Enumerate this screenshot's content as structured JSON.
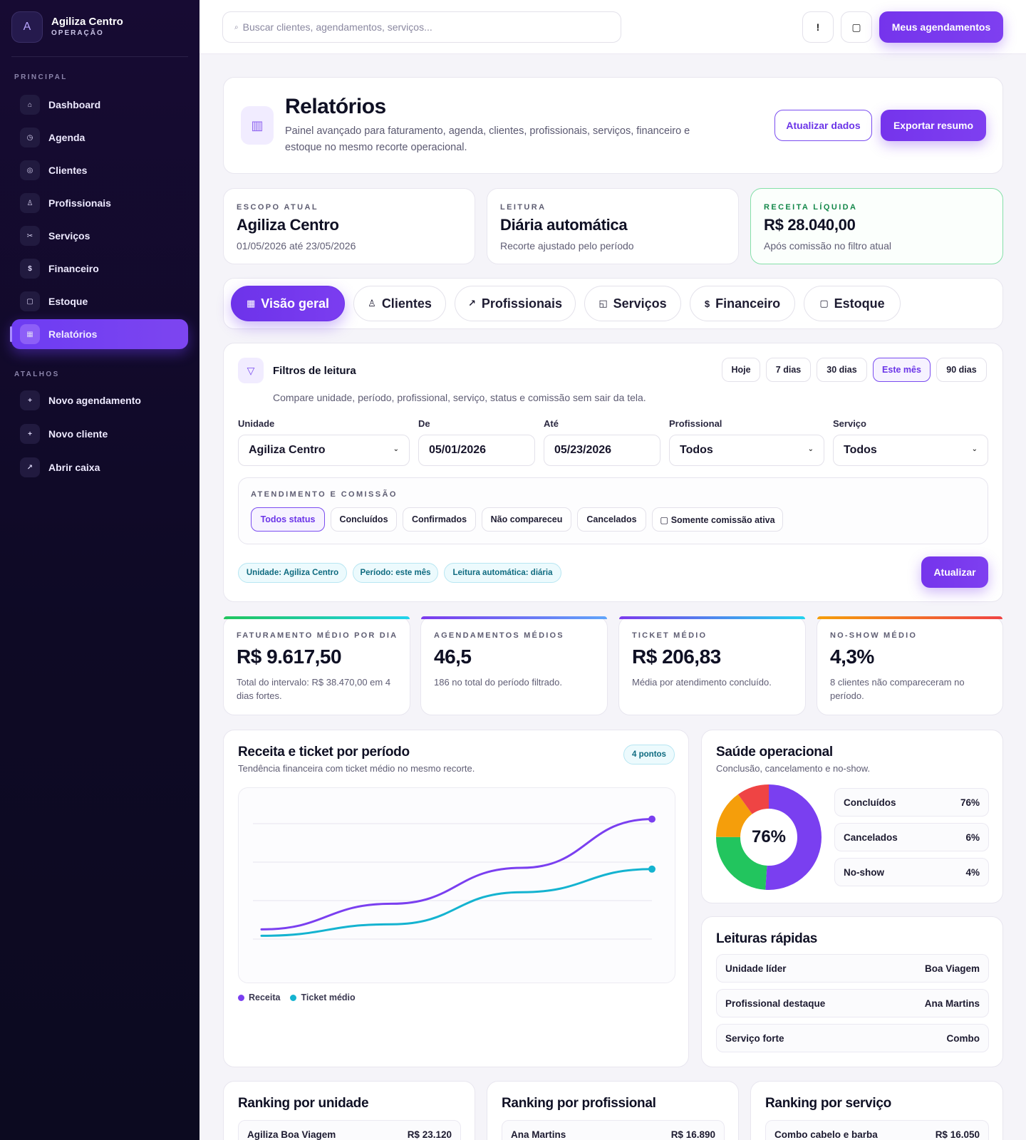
{
  "sidebar": {
    "logo_letter": "A",
    "brand_name": "Agiliza Centro",
    "brand_sub": "OPERAÇÃO",
    "section_main": "PRINCIPAL",
    "section_shortcuts": "ATALHOS",
    "items": [
      {
        "label": "Dashboard",
        "icon": "⌂"
      },
      {
        "label": "Agenda",
        "icon": "◷"
      },
      {
        "label": "Clientes",
        "icon": "◎"
      },
      {
        "label": "Profissionais",
        "icon": "♙"
      },
      {
        "label": "Serviços",
        "icon": "✂"
      },
      {
        "label": "Financeiro",
        "icon": "$"
      },
      {
        "label": "Estoque",
        "icon": "▢"
      },
      {
        "label": "Relatórios",
        "icon": "▦"
      }
    ],
    "shortcuts": [
      {
        "label": "Novo agendamento",
        "icon": "+"
      },
      {
        "label": "Novo cliente",
        "icon": "+"
      },
      {
        "label": "Abrir caixa",
        "icon": "↗"
      }
    ]
  },
  "topbar": {
    "search_icon": "⌕",
    "search_placeholder": "Buscar clientes, agendamentos, serviços...",
    "alert_icon": "!",
    "square_icon": "▢",
    "my_appointments": "Meus agendamentos"
  },
  "hero": {
    "icon": "▥",
    "title": "Relatórios",
    "description": "Painel avançado para faturamento, agenda, clientes, profissionais, serviços, financeiro e estoque no mesmo recorte operacional.",
    "refresh_button": "Atualizar dados",
    "export_button": "Exportar resumo"
  },
  "info_cards": [
    {
      "label": "ESCOPO ATUAL",
      "value": "Agiliza Centro",
      "sub": "01/05/2026 até 23/05/2026"
    },
    {
      "label": "LEITURA",
      "value": "Diária automática",
      "sub": "Recorte ajustado pelo período"
    },
    {
      "label": "RECEITA LÍQUIDA",
      "value": "R$ 28.040,00",
      "sub": "Após comissão no filtro atual"
    }
  ],
  "tabs": [
    {
      "label": "Visão geral",
      "icon": "▦"
    },
    {
      "label": "Clientes",
      "icon": "♙"
    },
    {
      "label": "Profissionais",
      "icon": "↗"
    },
    {
      "label": "Serviços",
      "icon": "◱"
    },
    {
      "label": "Financeiro",
      "icon": "$"
    },
    {
      "label": "Estoque",
      "icon": "▢"
    }
  ],
  "filters": {
    "icon": "▽",
    "title": "Filtros de leitura",
    "description": "Compare unidade, período, profissional, serviço, status e comissão sem sair da tela.",
    "periods": [
      "Hoje",
      "7 dias",
      "30 dias",
      "Este mês",
      "90 dias"
    ],
    "unit_label": "Unidade",
    "unit_value": "Agiliza Centro",
    "from_label": "De",
    "from_value": "05/01/2026",
    "to_label": "Até",
    "to_value": "05/23/2026",
    "pro_label": "Profissional",
    "pro_value": "Todos",
    "service_label": "Serviço",
    "service_value": "Todos",
    "chev": "⌄",
    "status_title": "ATENDIMENTO E COMISSÃO",
    "statuses": [
      "Todos status",
      "Concluídos",
      "Confirmados",
      "Não compareceu",
      "Cancelados",
      "▢ Somente comissão ativa"
    ],
    "tags": [
      "Unidade: Agiliza Centro",
      "Período: este mês",
      "Leitura automática: diária"
    ],
    "update_button": "Atualizar"
  },
  "metrics": [
    {
      "label": "FATURAMENTO MÉDIO POR DIA",
      "value": "R$ 9.617,50",
      "sub": "Total do intervalo: R$ 38.470,00 em 4 dias fortes.",
      "color": "#22c3a0"
    },
    {
      "label": "AGENDAMENTOS MÉDIOS",
      "value": "46,5",
      "sub": "186 no total do período filtrado.",
      "color": "#7c5cf0"
    },
    {
      "label": "TICKET MÉDIO",
      "value": "R$ 206,83",
      "sub": "Média por atendimento concluído.",
      "color": "#6a7cf0"
    },
    {
      "label": "NO-SHOW MÉDIO",
      "value": "4,3%",
      "sub": "8 clientes não compareceram no período.",
      "color": "#f06a4a"
    }
  ],
  "revenue_chart": {
    "title": "Receita e ticket por período",
    "subtitle": "Tendência financeira com ticket médio no mesmo recorte.",
    "badge": "4 pontos",
    "legend": [
      "Receita",
      "Ticket médio"
    ]
  },
  "chart_data": {
    "type": "line",
    "title": "Receita e ticket por período",
    "xlabel": "",
    "ylabel": "",
    "x": [
      1,
      2,
      3,
      4
    ],
    "ylim": [
      0,
      100
    ],
    "grid": true,
    "legend": "bottom-left",
    "series": [
      {
        "name": "Receita",
        "color": "#7a3ff0",
        "values": [
          12,
          32,
          60,
          98
        ]
      },
      {
        "name": "Ticket médio",
        "color": "#14b3d0",
        "values": [
          7,
          16,
          41,
          59
        ]
      }
    ]
  },
  "health": {
    "title": "Saúde operacional",
    "subtitle": "Conclusão, cancelamento e no-show.",
    "center": "76%",
    "rows": [
      {
        "label": "Concluídos",
        "value": "76%"
      },
      {
        "label": "Cancelados",
        "value": "6%"
      },
      {
        "label": "No-show",
        "value": "4%"
      }
    ],
    "donut": [
      {
        "value": 51,
        "color": "#7a3ff0"
      },
      {
        "value": 24,
        "color": "#22c55e"
      },
      {
        "value": 15,
        "color": "#f59e0b"
      },
      {
        "value": 10,
        "color": "#ef4444"
      }
    ]
  },
  "quick": {
    "title": "Leituras rápidas",
    "rows": [
      {
        "label": "Unidade líder",
        "value": "Boa Viagem"
      },
      {
        "label": "Profissional destaque",
        "value": "Ana Martins"
      },
      {
        "label": "Serviço forte",
        "value": "Combo"
      }
    ]
  },
  "rankings": [
    {
      "title": "Ranking por unidade",
      "first_label": "Agiliza Boa Viagem",
      "first_value": "R$ 23.120"
    },
    {
      "title": "Ranking por profissional",
      "first_label": "Ana Martins",
      "first_value": "R$ 16.890"
    },
    {
      "title": "Ranking por serviço",
      "first_label": "Combo cabelo e barba",
      "first_value": "R$ 16.050"
    }
  ]
}
